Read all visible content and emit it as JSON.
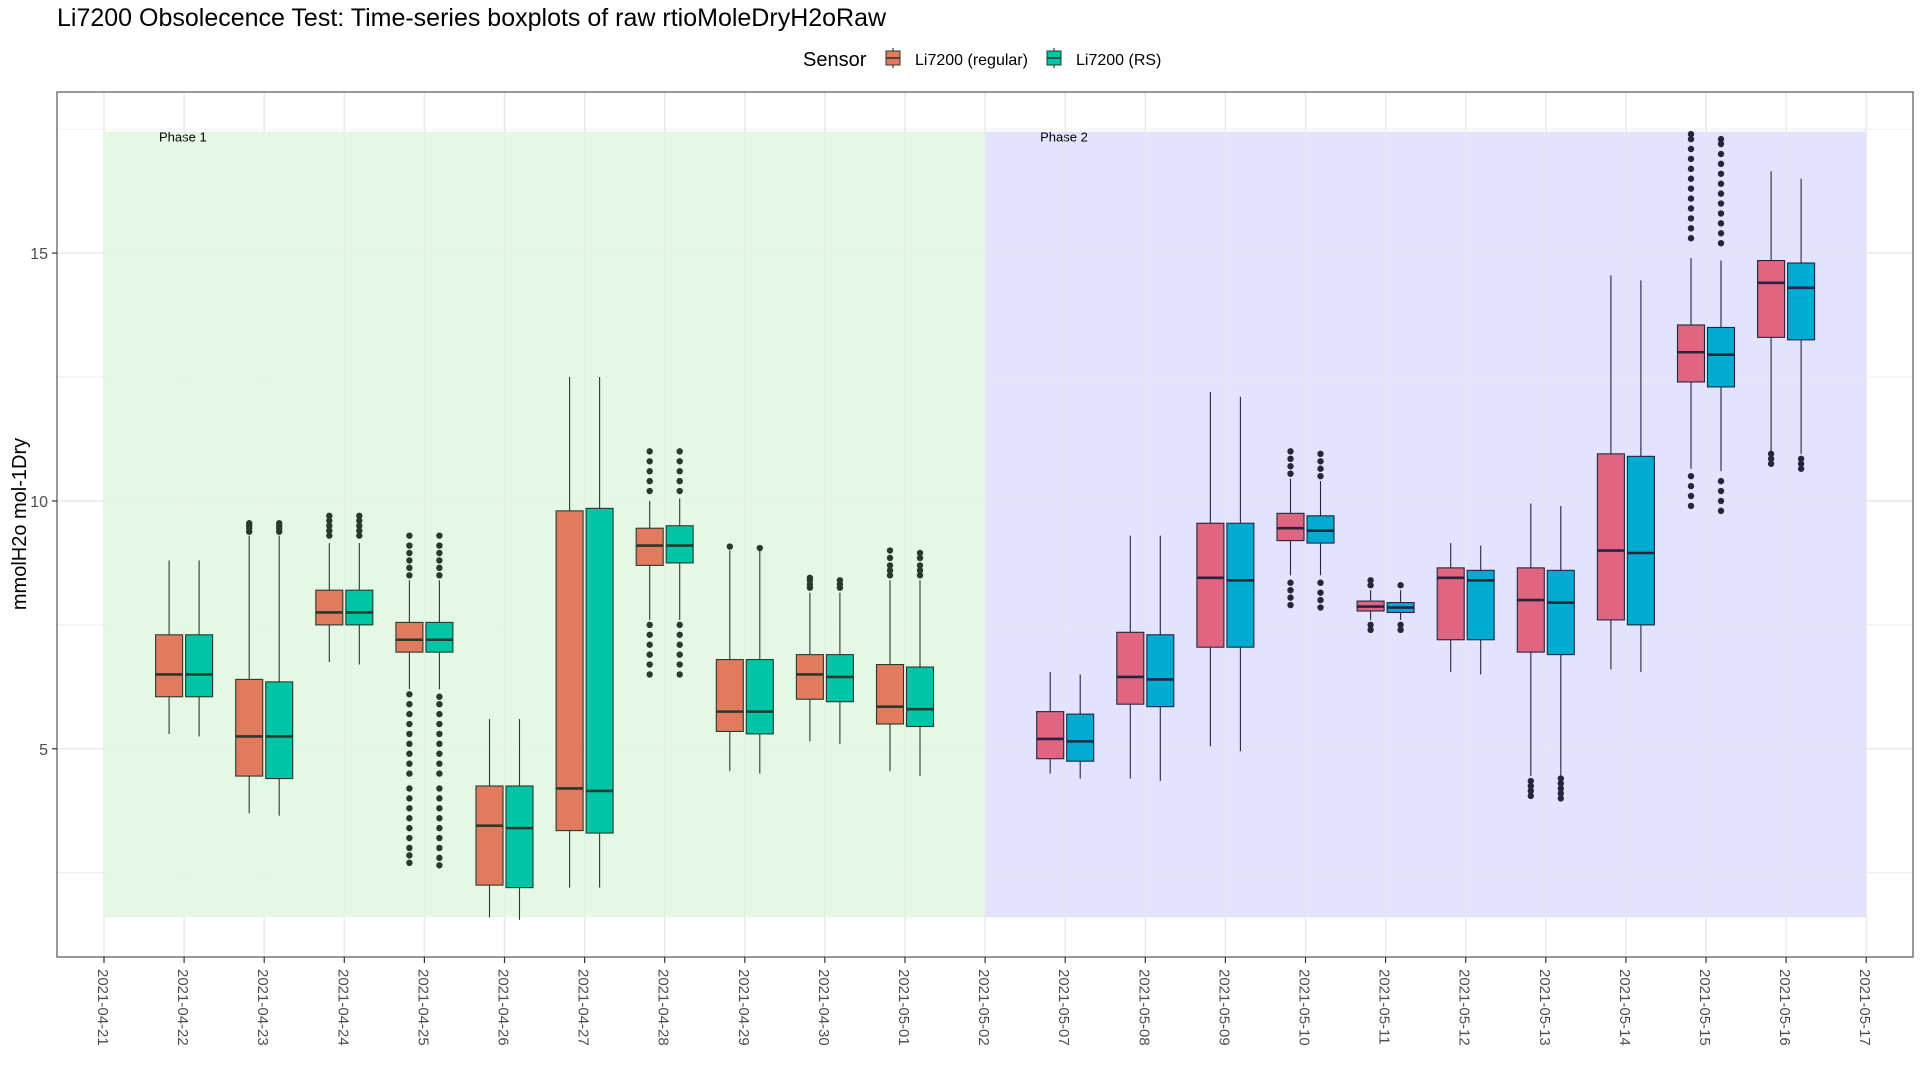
{
  "chart_data": {
    "type": "boxplot",
    "title": "Li7200 Obsolecence Test: Time-series boxplots of raw rtioMoleDryH2oRaw",
    "ylabel": "mmolH2o mol-1Dry",
    "xlabel": "",
    "ylim": [
      0.8,
      18.25
    ],
    "yticks": [
      5,
      10,
      15
    ],
    "grid": true,
    "legend": {
      "title": "Sensor",
      "position": "top",
      "entries": [
        "Li7200 (regular)",
        "Li7200 (RS)"
      ]
    },
    "categories": [
      "2021-04-21",
      "2021-04-22",
      "2021-04-23",
      "2021-04-24",
      "2021-04-25",
      "2021-04-26",
      "2021-04-27",
      "2021-04-28",
      "2021-04-29",
      "2021-04-30",
      "2021-05-01",
      "2021-05-02",
      "2021-05-07",
      "2021-05-08",
      "2021-05-09",
      "2021-05-10",
      "2021-05-11",
      "2021-05-12",
      "2021-05-13",
      "2021-05-14",
      "2021-05-15",
      "2021-05-16",
      "2021-05-17"
    ],
    "phases": [
      {
        "label": "Phase 1",
        "start": "2021-04-21",
        "end": "2021-05-02",
        "ymin": 1.6,
        "ymax": 17.45,
        "fill": "#e5f8e5"
      },
      {
        "label": "Phase 2",
        "start": "2021-05-02",
        "end": "2021-05-17",
        "ymin": 1.6,
        "ymax": 17.45,
        "fill": "#e3e3fd"
      }
    ],
    "series": [
      {
        "name": "Li7200 (regular)",
        "boxes": [
          {
            "date": "2021-04-22",
            "min": 5.3,
            "q1": 6.05,
            "median": 6.5,
            "q3": 7.3,
            "max": 8.8,
            "outliers": []
          },
          {
            "date": "2021-04-23",
            "min": 3.7,
            "q1": 4.45,
            "median": 5.25,
            "q3": 6.4,
            "max": 9.3,
            "outliers": [
              9.38,
              9.45,
              9.5,
              9.55
            ]
          },
          {
            "date": "2021-04-24",
            "min": 6.75,
            "q1": 7.5,
            "median": 7.75,
            "q3": 8.2,
            "max": 9.15,
            "outliers": [
              9.3,
              9.4,
              9.5,
              9.6,
              9.7
            ]
          },
          {
            "date": "2021-04-25",
            "min": 6.2,
            "q1": 6.95,
            "median": 7.2,
            "q3": 7.55,
            "max": 8.4,
            "outliers": [
              2.7,
              2.85,
              3.0,
              3.2,
              3.4,
              3.6,
              3.8,
              4.0,
              4.2,
              4.5,
              4.7,
              4.9,
              5.1,
              5.3,
              5.5,
              5.7,
              5.9,
              6.1,
              8.5,
              8.65,
              8.8,
              8.95,
              9.1,
              9.3
            ]
          },
          {
            "date": "2021-04-26",
            "min": 1.6,
            "q1": 2.25,
            "median": 3.45,
            "q3": 4.25,
            "max": 5.6,
            "outliers": []
          },
          {
            "date": "2021-04-27",
            "min": 2.2,
            "q1": 3.35,
            "median": 4.2,
            "q3": 9.8,
            "max": 12.5,
            "outliers": []
          },
          {
            "date": "2021-04-28",
            "min": 7.6,
            "q1": 8.7,
            "median": 9.1,
            "q3": 9.45,
            "max": 10.0,
            "outliers": [
              6.5,
              6.7,
              6.9,
              7.1,
              7.3,
              7.5,
              10.2,
              10.4,
              10.6,
              10.8,
              11.0
            ]
          },
          {
            "date": "2021-04-29",
            "min": 4.55,
            "q1": 5.35,
            "median": 5.75,
            "q3": 6.8,
            "max": 9.0,
            "outliers": [
              9.08
            ]
          },
          {
            "date": "2021-04-30",
            "min": 5.15,
            "q1": 6.0,
            "median": 6.5,
            "q3": 6.9,
            "max": 8.15,
            "outliers": [
              8.25,
              8.32,
              8.4,
              8.45
            ]
          },
          {
            "date": "2021-05-01",
            "min": 4.55,
            "q1": 5.5,
            "median": 5.85,
            "q3": 6.7,
            "max": 8.4,
            "outliers": [
              8.5,
              8.6,
              8.7,
              8.85,
              9.0
            ]
          },
          {
            "date": "2021-05-07",
            "min": 4.5,
            "q1": 4.8,
            "median": 5.2,
            "q3": 5.75,
            "max": 6.55,
            "outliers": []
          },
          {
            "date": "2021-05-08",
            "min": 4.4,
            "q1": 5.9,
            "median": 6.45,
            "q3": 7.35,
            "max": 9.3,
            "outliers": []
          },
          {
            "date": "2021-05-09",
            "min": 5.05,
            "q1": 7.05,
            "median": 8.45,
            "q3": 9.55,
            "max": 12.2,
            "outliers": []
          },
          {
            "date": "2021-05-10",
            "min": 8.5,
            "q1": 9.2,
            "median": 9.45,
            "q3": 9.75,
            "max": 10.45,
            "outliers": [
              7.9,
              8.05,
              8.2,
              8.35,
              10.55,
              10.7,
              10.85,
              11.0
            ]
          },
          {
            "date": "2021-05-11",
            "min": 7.6,
            "q1": 7.78,
            "median": 7.87,
            "q3": 7.98,
            "max": 8.2,
            "outliers": [
              7.4,
              7.5,
              8.3,
              8.4
            ]
          },
          {
            "date": "2021-05-12",
            "min": 6.55,
            "q1": 7.2,
            "median": 8.45,
            "q3": 8.65,
            "max": 9.15,
            "outliers": []
          },
          {
            "date": "2021-05-13",
            "min": 4.45,
            "q1": 6.95,
            "median": 8.0,
            "q3": 8.65,
            "max": 9.95,
            "outliers": [
              4.05,
              4.15,
              4.25,
              4.35
            ]
          },
          {
            "date": "2021-05-14",
            "min": 6.6,
            "q1": 7.6,
            "median": 9.0,
            "q3": 10.95,
            "max": 14.55,
            "outliers": []
          },
          {
            "date": "2021-05-15",
            "min": 10.65,
            "q1": 12.4,
            "median": 13.0,
            "q3": 13.55,
            "max": 14.9,
            "outliers": [
              9.9,
              10.1,
              10.3,
              10.5,
              15.3,
              15.5,
              15.7,
              15.9,
              16.1,
              16.3,
              16.5,
              16.7,
              16.9,
              17.1,
              17.3,
              17.4
            ]
          },
          {
            "date": "2021-05-16",
            "min": 11.0,
            "q1": 13.3,
            "median": 14.4,
            "q3": 14.85,
            "max": 16.65,
            "outliers": [
              10.75,
              10.85,
              10.95
            ]
          }
        ]
      },
      {
        "name": "Li7200 (RS)",
        "boxes": [
          {
            "date": "2021-04-22",
            "min": 5.25,
            "q1": 6.05,
            "median": 6.5,
            "q3": 7.3,
            "max": 8.8,
            "outliers": []
          },
          {
            "date": "2021-04-23",
            "min": 3.65,
            "q1": 4.4,
            "median": 5.25,
            "q3": 6.35,
            "max": 9.3,
            "outliers": [
              9.38,
              9.45,
              9.5,
              9.55
            ]
          },
          {
            "date": "2021-04-24",
            "min": 6.7,
            "q1": 7.5,
            "median": 7.75,
            "q3": 8.2,
            "max": 9.15,
            "outliers": [
              9.3,
              9.4,
              9.5,
              9.6,
              9.7
            ]
          },
          {
            "date": "2021-04-25",
            "min": 6.2,
            "q1": 6.95,
            "median": 7.2,
            "q3": 7.55,
            "max": 8.4,
            "outliers": [
              2.65,
              2.8,
              3.0,
              3.2,
              3.4,
              3.6,
              3.8,
              4.0,
              4.2,
              4.5,
              4.7,
              4.9,
              5.1,
              5.3,
              5.5,
              5.7,
              5.9,
              6.05,
              8.5,
              8.65,
              8.8,
              8.95,
              9.1,
              9.3
            ]
          },
          {
            "date": "2021-04-26",
            "min": 1.55,
            "q1": 2.2,
            "median": 3.4,
            "q3": 4.25,
            "max": 5.6,
            "outliers": []
          },
          {
            "date": "2021-04-27",
            "min": 2.2,
            "q1": 3.3,
            "median": 4.15,
            "q3": 9.85,
            "max": 12.5,
            "outliers": []
          },
          {
            "date": "2021-04-28",
            "min": 7.6,
            "q1": 8.75,
            "median": 9.1,
            "q3": 9.5,
            "max": 10.05,
            "outliers": [
              6.5,
              6.7,
              6.9,
              7.1,
              7.3,
              7.5,
              10.2,
              10.4,
              10.6,
              10.8,
              11.0
            ]
          },
          {
            "date": "2021-04-29",
            "min": 4.5,
            "q1": 5.3,
            "median": 5.75,
            "q3": 6.8,
            "max": 9.0,
            "outliers": [
              9.05
            ]
          },
          {
            "date": "2021-04-30",
            "min": 5.1,
            "q1": 5.95,
            "median": 6.45,
            "q3": 6.9,
            "max": 8.15,
            "outliers": [
              8.25,
              8.32,
              8.4
            ]
          },
          {
            "date": "2021-05-01",
            "min": 4.45,
            "q1": 5.45,
            "median": 5.8,
            "q3": 6.65,
            "max": 8.4,
            "outliers": [
              8.5,
              8.6,
              8.7,
              8.85,
              8.95
            ]
          },
          {
            "date": "2021-05-07",
            "min": 4.4,
            "q1": 4.75,
            "median": 5.15,
            "q3": 5.7,
            "max": 6.5,
            "outliers": []
          },
          {
            "date": "2021-05-08",
            "min": 4.35,
            "q1": 5.85,
            "median": 6.4,
            "q3": 7.3,
            "max": 9.3,
            "outliers": []
          },
          {
            "date": "2021-05-09",
            "min": 4.95,
            "q1": 7.05,
            "median": 8.4,
            "q3": 9.55,
            "max": 12.1,
            "outliers": []
          },
          {
            "date": "2021-05-10",
            "min": 8.5,
            "q1": 9.15,
            "median": 9.4,
            "q3": 9.7,
            "max": 10.4,
            "outliers": [
              7.85,
              8.0,
              8.15,
              8.35,
              10.5,
              10.65,
              10.8,
              10.95
            ]
          },
          {
            "date": "2021-05-11",
            "min": 7.6,
            "q1": 7.75,
            "median": 7.85,
            "q3": 7.95,
            "max": 8.2,
            "outliers": [
              7.4,
              7.5,
              8.3
            ]
          },
          {
            "date": "2021-05-12",
            "min": 6.5,
            "q1": 7.2,
            "median": 8.4,
            "q3": 8.6,
            "max": 9.1,
            "outliers": []
          },
          {
            "date": "2021-05-13",
            "min": 4.45,
            "q1": 6.9,
            "median": 7.95,
            "q3": 8.6,
            "max": 9.9,
            "outliers": [
              4.0,
              4.1,
              4.2,
              4.3,
              4.4
            ]
          },
          {
            "date": "2021-05-14",
            "min": 6.55,
            "q1": 7.5,
            "median": 8.95,
            "q3": 10.9,
            "max": 14.45,
            "outliers": []
          },
          {
            "date": "2021-05-15",
            "min": 10.6,
            "q1": 12.3,
            "median": 12.95,
            "q3": 13.5,
            "max": 14.85,
            "outliers": [
              9.8,
              10.0,
              10.2,
              10.4,
              15.2,
              15.4,
              15.6,
              15.8,
              16.0,
              16.2,
              16.4,
              16.6,
              16.8,
              17.0,
              17.2,
              17.3
            ]
          },
          {
            "date": "2021-05-16",
            "min": 10.95,
            "q1": 13.25,
            "median": 14.3,
            "q3": 14.8,
            "max": 16.5,
            "outliers": [
              10.65,
              10.75,
              10.85
            ]
          }
        ]
      }
    ],
    "colors": {
      "phase1": {
        "regular": "#e07b60",
        "rs": "#00c4a6",
        "line": "#2a3a2a"
      },
      "phase2": {
        "regular": "#e06580",
        "rs": "#00aad0",
        "line": "#25253f"
      },
      "grid": "#e8e8e8",
      "border": "#555555"
    }
  }
}
